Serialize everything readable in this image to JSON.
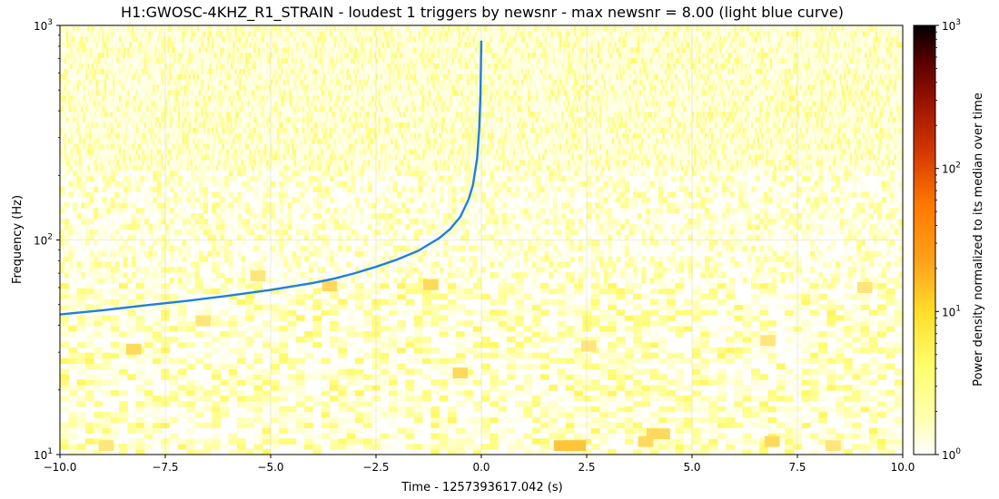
{
  "chart_data": {
    "type": "heatmap",
    "title": "H1:GWOSC-4KHZ_R1_STRAIN - loudest 1 triggers by newsnr - max newsnr = 8.00 (light blue curve)",
    "xlabel": "Time - 1257393617.042 (s)",
    "ylabel": "Frequency (Hz)",
    "xlim": [
      -10.0,
      10.0
    ],
    "ylim": [
      10,
      1000
    ],
    "yscale": "log",
    "x_ticks": [
      -10.0,
      -7.5,
      -5.0,
      -2.5,
      0.0,
      2.5,
      5.0,
      7.5,
      10.0
    ],
    "x_tick_labels": [
      "−10.0",
      "−7.5",
      "−5.0",
      "−2.5",
      "0.0",
      "2.5",
      "5.0",
      "7.5",
      "10.0"
    ],
    "y_ticks": [
      10,
      100,
      1000
    ],
    "y_tick_labels": [
      [
        "10",
        "1"
      ],
      [
        "10",
        "2"
      ],
      [
        "10",
        "3"
      ]
    ],
    "grid": true,
    "colorbar": {
      "label": "Power density normalized to its median over time",
      "scale": "log",
      "range": [
        1,
        1000
      ],
      "ticks": [
        1,
        10,
        100,
        1000
      ],
      "tick_labels": [
        [
          "10",
          "0"
        ],
        [
          "10",
          "1"
        ],
        [
          "10",
          "2"
        ],
        [
          "10",
          "3"
        ]
      ],
      "colormap": "afmhot_r"
    },
    "series": [
      {
        "type": "line",
        "color": "#1f7fe0",
        "x": [
          -10.0,
          -9.0,
          -8.0,
          -7.0,
          -6.0,
          -5.0,
          -4.0,
          -3.5,
          -3.0,
          -2.5,
          -2.0,
          -1.5,
          -1.0,
          -0.75,
          -0.5,
          -0.3,
          -0.2,
          -0.1,
          -0.05,
          -0.02,
          0.0
        ],
        "y": [
          45,
          47,
          49.5,
          52,
          55,
          58.5,
          63,
          66,
          70,
          75,
          81,
          89,
          102,
          112,
          128,
          155,
          180,
          240,
          330,
          480,
          850
        ]
      }
    ],
    "loud_bins": [
      {
        "t": -8.25,
        "f": 31,
        "level": 1.0
      },
      {
        "t": -8.9,
        "f": 11,
        "level": 0.9
      },
      {
        "t": -6.6,
        "f": 42,
        "level": 0.9
      },
      {
        "t": -5.3,
        "f": 68,
        "level": 0.9
      },
      {
        "t": -3.6,
        "f": 61,
        "level": 1.0
      },
      {
        "t": -1.2,
        "f": 62,
        "level": 1.0
      },
      {
        "t": -0.5,
        "f": 24,
        "level": 1.0
      },
      {
        "t": 1.9,
        "f": 11,
        "level": 1.1
      },
      {
        "t": 2.15,
        "f": 11,
        "level": 1.2
      },
      {
        "t": 2.3,
        "f": 11,
        "level": 1.2
      },
      {
        "t": 2.55,
        "f": 32,
        "level": 0.9
      },
      {
        "t": 3.9,
        "f": 11.5,
        "level": 1.0
      },
      {
        "t": 4.1,
        "f": 12.5,
        "level": 1.0
      },
      {
        "t": 4.3,
        "f": 12.5,
        "level": 1.0
      },
      {
        "t": 6.8,
        "f": 34,
        "level": 0.9
      },
      {
        "t": 6.9,
        "f": 11.5,
        "level": 1.0
      },
      {
        "t": 8.35,
        "f": 11,
        "level": 0.9
      },
      {
        "t": 9.1,
        "f": 60,
        "level": 0.8
      }
    ]
  }
}
